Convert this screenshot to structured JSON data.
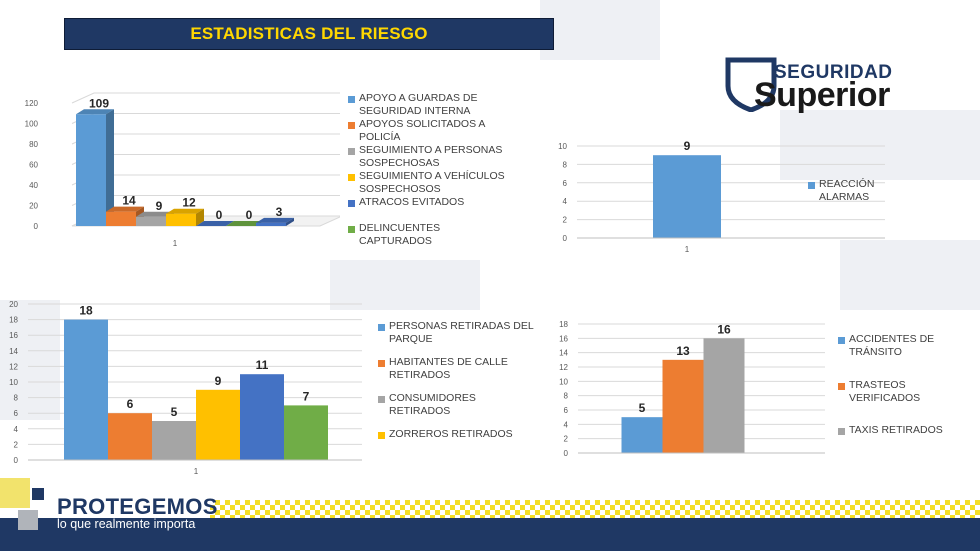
{
  "header": {
    "title": "ESTADISTICAS DEL RIESGO"
  },
  "logo": {
    "line1": "SEGURIDAD",
    "line2": "Superior"
  },
  "footer": {
    "brand": "PROTEGEMOS",
    "tagline": "lo que realmente importa"
  },
  "colors": {
    "blue": "#5b9bd5",
    "orange": "#ed7d31",
    "gray": "#a5a5a5",
    "yellow": "#ffc000",
    "darkblue": "#4472c4",
    "green": "#70ad47",
    "navy": "#1f3864",
    "title_text": "#ffd700"
  },
  "chart_data": [
    {
      "type": "bar",
      "style": "3d",
      "categories": [
        "1"
      ],
      "ylim": [
        0,
        120
      ],
      "yticks": [
        "0",
        "20",
        "40",
        "60",
        "80",
        "100",
        "120"
      ],
      "grid": true,
      "legend_position": "right",
      "series": [
        {
          "name": "APOYO A GUARDAS DE SEGURIDAD INTERNA",
          "values": [
            109
          ],
          "color": "#5b9bd5"
        },
        {
          "name": "APOYOS SOLICITADOS A POLICÍA",
          "values": [
            14
          ],
          "color": "#ed7d31"
        },
        {
          "name": "SEGUIMIENTO A PERSONAS SOSPECHOSAS",
          "values": [
            9
          ],
          "color": "#a5a5a5"
        },
        {
          "name": "SEGUIMIENTO A VEHÍCULOS SOSPECHOSOS",
          "values": [
            12
          ],
          "color": "#ffc000"
        },
        {
          "name": "ATRACOS EVITADOS",
          "values": [
            0
          ],
          "color": "#4472c4"
        },
        {
          "name": "DELINCUENTES CAPTURADOS",
          "values": [
            0
          ],
          "color": "#70ad47"
        },
        {
          "name": "",
          "values": [
            3
          ],
          "color": "#4472c4"
        }
      ],
      "data_labels": [
        "109",
        "14",
        "9",
        "12",
        "0",
        "0",
        "3"
      ]
    },
    {
      "type": "bar",
      "categories": [
        "1"
      ],
      "ylim": [
        0,
        10
      ],
      "yticks": [
        "0",
        "2",
        "4",
        "6",
        "8",
        "10"
      ],
      "grid": true,
      "legend_position": "right",
      "series": [
        {
          "name": "REACCIÓN ALARMAS",
          "values": [
            9
          ],
          "color": "#5b9bd5"
        }
      ],
      "data_labels": [
        "9"
      ]
    },
    {
      "type": "bar",
      "categories": [
        "1"
      ],
      "ylim": [
        0,
        20
      ],
      "yticks": [
        "0",
        "2",
        "4",
        "6",
        "8",
        "10",
        "12",
        "14",
        "16",
        "18",
        "20"
      ],
      "grid": true,
      "legend_position": "right",
      "series": [
        {
          "name": "PERSONAS RETIRADAS DEL PARQUE",
          "values": [
            18
          ],
          "color": "#5b9bd5"
        },
        {
          "name": "HABITANTES DE CALLE RETIRADOS",
          "values": [
            6
          ],
          "color": "#ed7d31"
        },
        {
          "name": "CONSUMIDORES RETIRADOS",
          "values": [
            5
          ],
          "color": "#a5a5a5"
        },
        {
          "name": "ZORREROS RETIRADOS",
          "values": [
            9
          ],
          "color": "#ffc000"
        },
        {
          "name": "",
          "values": [
            11
          ],
          "color": "#4472c4"
        },
        {
          "name": "",
          "values": [
            7
          ],
          "color": "#70ad47"
        }
      ],
      "data_labels": [
        "18",
        "6",
        "5",
        "9",
        "11",
        "7"
      ]
    },
    {
      "type": "bar",
      "categories": [
        ""
      ],
      "ylim": [
        0,
        18
      ],
      "yticks": [
        "0",
        "2",
        "4",
        "6",
        "8",
        "10",
        "12",
        "14",
        "16",
        "18"
      ],
      "grid": true,
      "legend_position": "right",
      "series": [
        {
          "name": "ACCIDENTES DE TRÁNSITO",
          "values": [
            5
          ],
          "color": "#5b9bd5"
        },
        {
          "name": "TRASTEOS VERIFICADOS",
          "values": [
            13
          ],
          "color": "#ed7d31"
        },
        {
          "name": "TAXIS RETIRADOS",
          "values": [
            16
          ],
          "color": "#a5a5a5"
        }
      ],
      "data_labels": [
        "5",
        "13",
        "16"
      ]
    }
  ],
  "legends": {
    "c1": [
      "APOYO A GUARDAS DE SEGURIDAD INTERNA",
      "APOYOS SOLICITADOS A POLICÍA",
      "SEGUIMIENTO A PERSONAS SOSPECHOSAS",
      "SEGUIMIENTO A VEHÍCULOS SOSPECHOSOS",
      "ATRACOS EVITADOS",
      "DELINCUENTES CAPTURADOS"
    ],
    "c2": [
      "REACCIÓN ALARMAS"
    ],
    "c3": [
      "PERSONAS RETIRADAS DEL PARQUE",
      "HABITANTES DE CALLE RETIRADOS",
      "CONSUMIDORES RETIRADOS",
      "ZORREROS RETIRADOS"
    ],
    "c4": [
      "ACCIDENTES DE TRÁNSITO",
      "TRASTEOS VERIFICADOS",
      "TAXIS RETIRADOS"
    ]
  }
}
